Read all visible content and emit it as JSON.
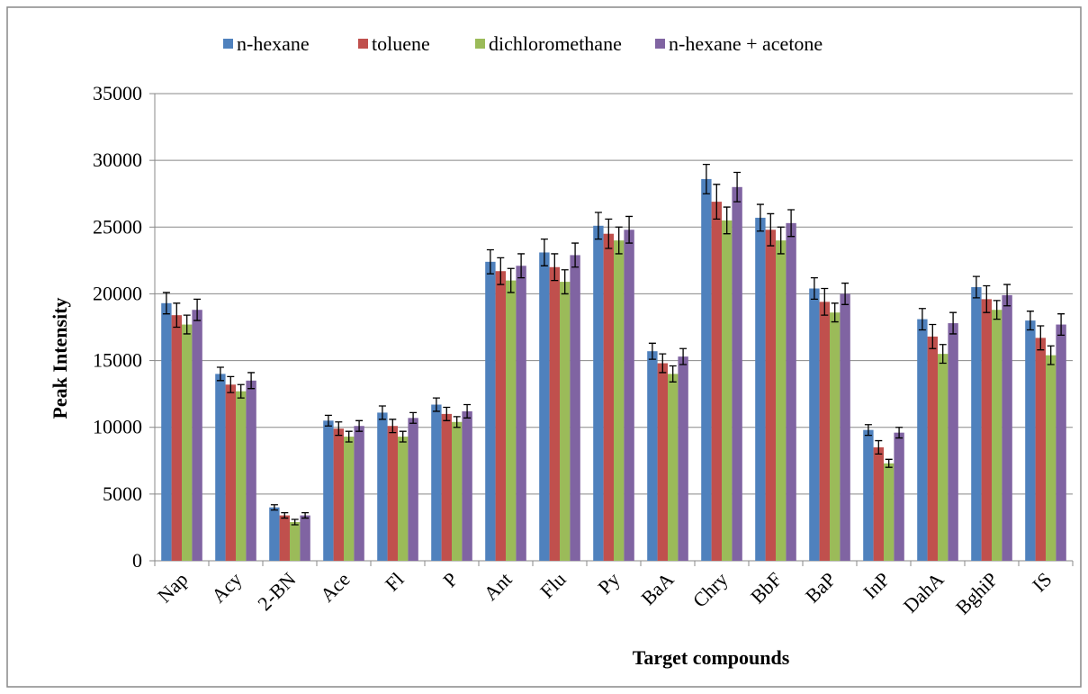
{
  "chart_data": {
    "type": "bar",
    "x_label": "Target compounds",
    "y_label": "Peak Intensity",
    "categories": [
      "Nap",
      "Acy",
      "2-BN",
      "Ace",
      "Fl",
      "P",
      "Ant",
      "Flu",
      "Py",
      "BaA",
      "Chry",
      "BbF",
      "BaP",
      "InP",
      "DahA",
      "BghiP",
      "IS"
    ],
    "series": [
      {
        "name": "n-hexane",
        "color": "#4f81bd",
        "values": [
          19300,
          14000,
          4000,
          10500,
          11100,
          11700,
          22400,
          23100,
          25100,
          15700,
          28600,
          25700,
          20400,
          9800,
          18100,
          20500,
          18000
        ],
        "errors": [
          800,
          500,
          200,
          400,
          500,
          500,
          900,
          1000,
          1000,
          600,
          1100,
          1000,
          800,
          400,
          800,
          800,
          700
        ]
      },
      {
        "name": "toluene",
        "color": "#c0504d",
        "values": [
          18400,
          13200,
          3400,
          9900,
          10100,
          11000,
          21700,
          22000,
          24500,
          14800,
          26900,
          24800,
          19400,
          8500,
          16800,
          19600,
          16700
        ],
        "errors": [
          900,
          600,
          200,
          500,
          500,
          500,
          1000,
          1000,
          1100,
          700,
          1300,
          1200,
          1000,
          500,
          900,
          1000,
          900
        ]
      },
      {
        "name": "dichloromethane",
        "color": "#9bbb59",
        "values": [
          17700,
          12700,
          2900,
          9300,
          9300,
          10400,
          21000,
          20900,
          24000,
          14000,
          25500,
          24000,
          18600,
          7300,
          15500,
          18800,
          15400
        ],
        "errors": [
          700,
          500,
          200,
          400,
          400,
          400,
          900,
          900,
          1000,
          600,
          1000,
          1000,
          700,
          300,
          700,
          700,
          700
        ]
      },
      {
        "name": "n-hexane + acetone",
        "color": "#8064a2",
        "values": [
          18800,
          13500,
          3400,
          10100,
          10700,
          11200,
          22100,
          22900,
          24800,
          15300,
          28000,
          25300,
          20000,
          9600,
          17800,
          19900,
          17700
        ],
        "errors": [
          800,
          600,
          200,
          400,
          400,
          500,
          900,
          900,
          1000,
          600,
          1100,
          1000,
          800,
          400,
          800,
          800,
          800
        ]
      }
    ],
    "ylim": [
      0,
      35000
    ],
    "yticks": [
      0,
      5000,
      10000,
      15000,
      20000,
      25000,
      30000,
      35000
    ],
    "grid": true,
    "legend": "top"
  }
}
